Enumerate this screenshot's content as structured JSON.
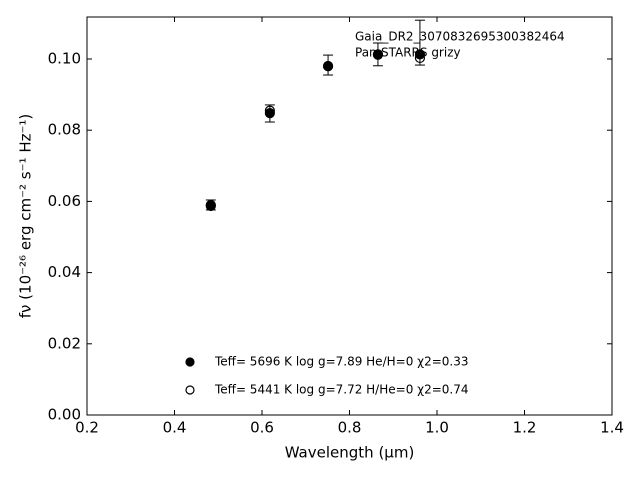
{
  "chart_data": {
    "type": "scatter",
    "xlabel": "Wavelength (μm)",
    "ylabel": "fν (10⁻²⁶ erg cm⁻² s⁻¹ Hz⁻¹)",
    "annotations": [
      "Gaia_DR2_3070832695300382464",
      "Pan-STARRS grizy"
    ],
    "xlim": [
      0.2,
      1.4
    ],
    "ylim": [
      0,
      0.1118
    ],
    "xticks": [
      0.2,
      0.4,
      0.6,
      0.8,
      {
        "value": 1.0,
        "label": "1.0"
      },
      1.2,
      1.4
    ],
    "yticks": [
      {
        "value": 0,
        "label": "0.00"
      },
      {
        "value": 0.02,
        "label": "0.02"
      },
      {
        "value": 0.04,
        "label": "0.04"
      },
      {
        "value": 0.06,
        "label": "0.06"
      },
      {
        "value": 0.08,
        "label": "0.08"
      },
      {
        "value": 0.1,
        "label": "0.10"
      }
    ],
    "observed": {
      "x": [
        0.483,
        0.618,
        0.751,
        0.865,
        0.961
      ],
      "values": [
        0.059,
        0.0847,
        0.0983,
        0.1013,
        0.1046
      ],
      "errors": [
        0.0014,
        0.0024,
        0.0028,
        0.0032,
        0.0063
      ],
      "color": "#000000"
    },
    "series": [
      {
        "name": "Teff=  5696 K  log g=7.89  He/H=0  χ2=0.33",
        "filled": true,
        "color": "#000000",
        "x": [
          0.483,
          0.618,
          0.751,
          0.865,
          0.961
        ],
        "values": [
          0.0587,
          0.0848,
          0.098,
          0.1013,
          0.1013
        ]
      },
      {
        "name": "Teff=  5441 K  log g=7.72  H/He=0  χ2=0.74",
        "filled": false,
        "color": "#000000",
        "x": [
          0.483,
          0.618,
          0.751,
          0.865,
          0.961
        ],
        "values": [
          0.059,
          0.0855,
          0.098,
          0.1012,
          0.1003
        ]
      }
    ]
  }
}
